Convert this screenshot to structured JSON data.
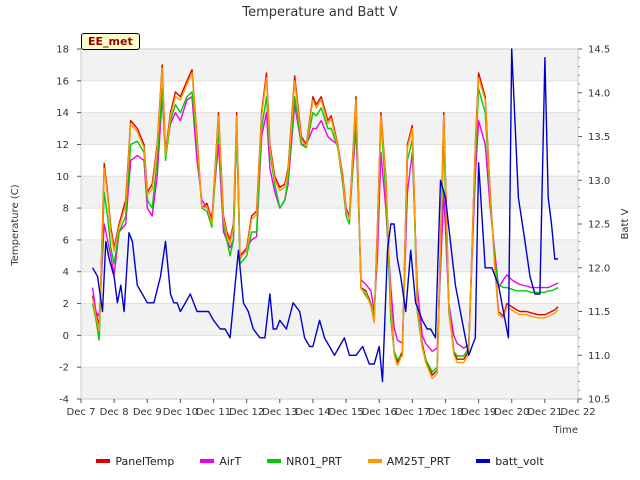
{
  "chart_data": {
    "type": "line",
    "title": "Temperature and Batt V",
    "site_label": "EE_met",
    "xlabel": "Time",
    "ylabel": "Temperature (C)",
    "y2label": "Batt V",
    "xlim": [
      7,
      22
    ],
    "ylim": [
      -4,
      18
    ],
    "y2lim": [
      10.5,
      14.5
    ],
    "x_ticks": [
      7,
      8,
      9,
      10,
      11,
      12,
      13,
      14,
      15,
      16,
      17,
      18,
      19,
      20,
      21,
      22
    ],
    "x_tick_labels": [
      "Dec 7",
      "Dec 8",
      "Dec 9",
      "Dec 10",
      "Dec 11",
      "Dec 12",
      "Dec 13",
      "Dec 14",
      "Dec 15",
      "Dec 16",
      "Dec 17",
      "Dec 18",
      "Dec 19",
      "Dec 20",
      "Dec 21",
      "Dec 22"
    ],
    "y_ticks": [
      -4,
      -2,
      0,
      2,
      4,
      6,
      8,
      10,
      12,
      14,
      16,
      18
    ],
    "y2_ticks": [
      10.5,
      11.0,
      11.5,
      12.0,
      12.5,
      13.0,
      13.5,
      14.0,
      14.5
    ],
    "y2_tick_labels": [
      "10.5",
      "11.0",
      "11.5",
      "12.0",
      "12.5",
      "13.0",
      "13.5",
      "14.0",
      "14.5"
    ],
    "grid": "horizontal bands",
    "legend_position": "bottom",
    "series": [
      {
        "name": "PanelTemp",
        "color": "#dd0000",
        "axis": "left",
        "x": [
          7.35,
          7.45,
          7.55,
          7.6,
          7.7,
          7.8,
          7.9,
          8.0,
          8.15,
          8.35,
          8.5,
          8.7,
          8.9,
          9.0,
          9.15,
          9.3,
          9.45,
          9.55,
          9.7,
          9.85,
          10.0,
          10.2,
          10.35,
          10.5,
          10.65,
          10.8,
          10.95,
          11.15,
          11.3,
          11.4,
          11.5,
          11.6,
          11.7,
          11.8,
          12.0,
          12.15,
          12.3,
          12.45,
          12.6,
          12.7,
          12.85,
          13.0,
          13.15,
          13.25,
          13.45,
          13.65,
          13.8,
          14.0,
          14.1,
          14.25,
          14.45,
          14.55,
          14.75,
          14.9,
          15.0,
          15.1,
          15.3,
          15.45,
          15.6,
          15.75,
          15.85,
          15.95,
          16.05,
          16.2,
          16.35,
          16.45,
          16.55,
          16.7,
          16.85,
          17.0,
          17.15,
          17.3,
          17.4,
          17.6,
          17.75,
          17.95,
          18.1,
          18.25,
          18.35,
          18.55,
          18.7,
          18.9,
          19.0,
          19.2,
          19.35,
          19.5,
          19.6,
          19.75,
          19.85,
          20.0,
          20.15,
          20.25,
          20.45,
          20.6,
          20.8,
          20.95,
          21.0,
          21.1,
          21.2,
          21.3,
          21.4
        ],
        "y": [
          2.5,
          1.5,
          0.5,
          3.5,
          10.8,
          9.0,
          6.8,
          5.5,
          7.0,
          8.5,
          13.5,
          13.0,
          12.0,
          9.0,
          9.5,
          12.0,
          17.0,
          11.5,
          14.0,
          15.3,
          15.0,
          16.0,
          16.7,
          12.5,
          8.0,
          8.3,
          7.2,
          14.0,
          7.5,
          6.5,
          6.0,
          7.0,
          14.0,
          5.0,
          5.5,
          7.5,
          7.8,
          14.0,
          16.5,
          12.0,
          10.0,
          9.3,
          9.5,
          10.5,
          16.3,
          12.5,
          12.0,
          15.0,
          14.5,
          15.0,
          13.5,
          13.8,
          12.0,
          10.0,
          8.0,
          7.5,
          15.0,
          3.0,
          2.8,
          2.0,
          1.0,
          7.0,
          14.0,
          10.0,
          2.0,
          -1.0,
          -1.7,
          -1.0,
          12.0,
          13.2,
          2.0,
          -0.5,
          -1.5,
          -2.5,
          -2.2,
          14.0,
          2.0,
          -1.0,
          -1.5,
          -1.5,
          -1.0,
          12.0,
          16.5,
          15.0,
          9.0,
          4.0,
          1.5,
          1.2,
          2.0,
          1.8,
          1.6,
          1.5,
          1.5,
          1.4,
          1.3,
          1.3,
          1.3,
          1.4,
          1.5,
          1.6,
          1.8
        ]
      },
      {
        "name": "AirT",
        "color": "#ee00ee",
        "axis": "left",
        "x": [
          7.35,
          7.45,
          7.55,
          7.6,
          7.7,
          7.8,
          7.9,
          8.0,
          8.15,
          8.35,
          8.5,
          8.7,
          8.9,
          9.0,
          9.15,
          9.3,
          9.45,
          9.55,
          9.7,
          9.85,
          10.0,
          10.2,
          10.35,
          10.5,
          10.65,
          10.8,
          10.95,
          11.15,
          11.3,
          11.4,
          11.5,
          11.6,
          11.7,
          11.8,
          12.0,
          12.15,
          12.3,
          12.45,
          12.6,
          12.7,
          12.85,
          13.0,
          13.15,
          13.25,
          13.45,
          13.65,
          13.8,
          14.0,
          14.1,
          14.25,
          14.45,
          14.55,
          14.75,
          14.9,
          15.0,
          15.1,
          15.3,
          15.45,
          15.6,
          15.75,
          15.85,
          15.95,
          16.05,
          16.2,
          16.35,
          16.45,
          16.55,
          16.7,
          16.85,
          17.0,
          17.15,
          17.3,
          17.4,
          17.6,
          17.75,
          17.95,
          18.1,
          18.25,
          18.35,
          18.55,
          18.7,
          18.9,
          19.0,
          19.2,
          19.35,
          19.5,
          19.6,
          19.75,
          19.85,
          20.0,
          20.15,
          20.25,
          20.45,
          20.6,
          20.8,
          20.95,
          21.0,
          21.1,
          21.2,
          21.3,
          21.4
        ],
        "y": [
          3.0,
          1.5,
          1.2,
          3.0,
          7.0,
          6.0,
          5.0,
          3.8,
          6.5,
          7.0,
          11.0,
          11.3,
          11.0,
          8.0,
          7.5,
          10.0,
          15.0,
          11.5,
          13.3,
          14.0,
          13.5,
          14.8,
          15.0,
          11.0,
          8.5,
          8.0,
          7.5,
          12.0,
          6.5,
          6.0,
          5.5,
          6.0,
          13.0,
          4.8,
          5.5,
          6.0,
          6.2,
          12.5,
          14.0,
          10.5,
          9.0,
          8.0,
          8.5,
          9.5,
          14.5,
          12.0,
          12.0,
          13.0,
          13.0,
          13.5,
          12.5,
          12.3,
          12.0,
          9.5,
          8.0,
          7.5,
          13.0,
          3.5,
          3.2,
          2.8,
          1.5,
          5.0,
          11.5,
          8.0,
          3.0,
          0.5,
          -0.3,
          -0.5,
          9.0,
          11.5,
          3.0,
          0.0,
          -0.5,
          -1.0,
          -0.8,
          9.0,
          2.0,
          0.0,
          -0.5,
          -0.8,
          -0.6,
          10.0,
          13.5,
          12.0,
          8.0,
          5.0,
          3.0,
          3.5,
          3.8,
          3.5,
          3.3,
          3.2,
          3.1,
          3.0,
          3.0,
          3.0,
          3.0,
          3.0,
          3.1,
          3.2,
          3.3
        ]
      },
      {
        "name": "NR01_PRT",
        "color": "#00cc00",
        "axis": "left",
        "x": [
          7.35,
          7.45,
          7.55,
          7.6,
          7.7,
          7.8,
          7.9,
          8.0,
          8.15,
          8.35,
          8.5,
          8.7,
          8.9,
          9.0,
          9.15,
          9.3,
          9.45,
          9.55,
          9.7,
          9.85,
          10.0,
          10.2,
          10.35,
          10.5,
          10.65,
          10.8,
          10.95,
          11.15,
          11.3,
          11.4,
          11.5,
          11.6,
          11.7,
          11.8,
          12.0,
          12.15,
          12.3,
          12.45,
          12.6,
          12.7,
          12.85,
          13.0,
          13.15,
          13.25,
          13.45,
          13.65,
          13.8,
          14.0,
          14.1,
          14.25,
          14.45,
          14.55,
          14.75,
          14.9,
          15.0,
          15.1,
          15.3,
          15.45,
          15.6,
          15.75,
          15.85,
          15.95,
          16.05,
          16.2,
          16.35,
          16.45,
          16.55,
          16.7,
          16.85,
          17.0,
          17.15,
          17.3,
          17.4,
          17.6,
          17.75,
          17.95,
          18.1,
          18.25,
          18.35,
          18.55,
          18.7,
          18.9,
          19.0,
          19.2,
          19.35,
          19.5,
          19.6,
          19.75,
          19.85,
          20.0,
          20.15,
          20.25,
          20.45,
          20.6,
          20.8,
          20.95,
          21.0,
          21.1,
          21.2,
          21.3,
          21.4
        ],
        "y": [
          2.0,
          1.0,
          -0.3,
          3.0,
          9.0,
          7.5,
          5.5,
          4.5,
          6.5,
          7.5,
          12.0,
          12.2,
          11.5,
          8.5,
          8.0,
          11.0,
          15.5,
          11.0,
          13.5,
          14.5,
          14.0,
          15.0,
          15.3,
          12.0,
          8.0,
          7.8,
          6.8,
          13.0,
          7.0,
          6.0,
          5.0,
          6.0,
          13.0,
          4.5,
          5.0,
          6.5,
          6.5,
          13.0,
          15.0,
          11.5,
          9.5,
          8.0,
          8.5,
          9.8,
          15.0,
          12.0,
          11.8,
          14.0,
          13.8,
          14.3,
          13.0,
          13.0,
          11.8,
          9.5,
          7.5,
          7.0,
          14.0,
          3.0,
          2.5,
          2.0,
          1.0,
          6.5,
          13.5,
          9.0,
          1.0,
          -1.0,
          -1.5,
          -1.3,
          11.0,
          12.3,
          1.5,
          -0.8,
          -1.5,
          -2.3,
          -2.0,
          12.5,
          1.5,
          -1.0,
          -1.3,
          -1.3,
          -0.8,
          11.0,
          15.5,
          14.0,
          8.5,
          4.5,
          3.2,
          3.0,
          3.0,
          2.9,
          2.8,
          2.8,
          2.8,
          2.7,
          2.7,
          2.7,
          2.7,
          2.8,
          2.8,
          2.9,
          3.0
        ]
      },
      {
        "name": "AM25T_PRT",
        "color": "#ff9900",
        "axis": "left",
        "x": [
          7.35,
          7.45,
          7.55,
          7.6,
          7.7,
          7.8,
          7.9,
          8.0,
          8.15,
          8.35,
          8.5,
          8.7,
          8.9,
          9.0,
          9.15,
          9.3,
          9.45,
          9.55,
          9.7,
          9.85,
          10.0,
          10.2,
          10.35,
          10.5,
          10.65,
          10.8,
          10.95,
          11.15,
          11.3,
          11.4,
          11.5,
          11.6,
          11.7,
          11.8,
          12.0,
          12.15,
          12.3,
          12.45,
          12.6,
          12.7,
          12.85,
          13.0,
          13.15,
          13.25,
          13.45,
          13.65,
          13.8,
          14.0,
          14.1,
          14.25,
          14.45,
          14.55,
          14.75,
          14.9,
          15.0,
          15.1,
          15.3,
          15.45,
          15.6,
          15.75,
          15.85,
          15.95,
          16.05,
          16.2,
          16.35,
          16.45,
          16.55,
          16.7,
          16.85,
          17.0,
          17.15,
          17.3,
          17.4,
          17.6,
          17.75,
          17.95,
          18.1,
          18.25,
          18.35,
          18.55,
          18.7,
          18.9,
          19.0,
          19.2,
          19.35,
          19.5,
          19.6,
          19.75,
          19.85,
          20.0,
          20.15,
          20.25,
          20.45,
          20.6,
          20.8,
          20.95,
          21.0,
          21.1,
          21.2,
          21.3,
          21.4
        ],
        "y": [
          2.3,
          1.2,
          0.3,
          3.3,
          10.5,
          8.8,
          6.5,
          5.3,
          6.8,
          8.2,
          13.3,
          12.8,
          11.8,
          8.8,
          9.2,
          11.8,
          16.8,
          11.3,
          13.8,
          15.0,
          14.8,
          15.8,
          16.5,
          12.3,
          8.0,
          8.1,
          7.0,
          13.8,
          7.3,
          6.3,
          5.8,
          6.8,
          13.8,
          4.9,
          5.3,
          7.3,
          7.6,
          13.8,
          16.2,
          11.8,
          9.8,
          9.1,
          9.3,
          10.3,
          16.0,
          12.3,
          11.9,
          14.8,
          14.3,
          14.8,
          13.3,
          13.6,
          11.9,
          9.8,
          7.8,
          7.3,
          14.8,
          2.9,
          2.7,
          1.8,
          0.8,
          6.8,
          13.8,
          9.8,
          1.8,
          -1.2,
          -1.9,
          -1.2,
          11.8,
          13.0,
          1.8,
          -0.7,
          -1.7,
          -2.7,
          -2.4,
          13.8,
          1.8,
          -1.2,
          -1.7,
          -1.7,
          -1.2,
          11.8,
          16.2,
          14.8,
          8.8,
          3.8,
          1.3,
          1.1,
          1.8,
          1.6,
          1.4,
          1.3,
          1.3,
          1.2,
          1.1,
          1.1,
          1.1,
          1.2,
          1.3,
          1.4,
          1.6
        ]
      },
      {
        "name": "batt_volt",
        "color": "#0000cc",
        "axis": "right",
        "x": [
          7.35,
          7.5,
          7.65,
          7.75,
          7.85,
          8.0,
          8.1,
          8.2,
          8.3,
          8.45,
          8.55,
          8.7,
          8.85,
          9.0,
          9.2,
          9.4,
          9.55,
          9.7,
          9.8,
          9.9,
          10.0,
          10.15,
          10.3,
          10.5,
          10.7,
          10.85,
          11.0,
          11.2,
          11.35,
          11.5,
          11.65,
          11.75,
          11.9,
          12.05,
          12.2,
          12.4,
          12.55,
          12.7,
          12.8,
          12.9,
          13.0,
          13.2,
          13.4,
          13.6,
          13.75,
          13.9,
          14.0,
          14.2,
          14.35,
          14.5,
          14.65,
          14.8,
          14.95,
          15.1,
          15.3,
          15.5,
          15.7,
          15.85,
          16.0,
          16.1,
          16.25,
          16.35,
          16.45,
          16.55,
          16.65,
          16.8,
          16.95,
          17.1,
          17.3,
          17.45,
          17.55,
          17.7,
          17.85,
          18.0,
          18.15,
          18.3,
          18.5,
          18.7,
          18.9,
          19.0,
          19.2,
          19.4,
          19.5,
          19.6,
          19.75,
          19.9,
          20.0,
          20.2,
          20.4,
          20.55,
          20.7,
          20.85,
          21.0,
          21.1,
          21.2,
          21.3,
          21.4
        ],
        "y": [
          12.0,
          11.9,
          11.5,
          12.3,
          12.1,
          11.9,
          11.6,
          11.8,
          11.5,
          12.4,
          12.3,
          11.8,
          11.7,
          11.6,
          11.6,
          11.9,
          12.3,
          11.7,
          11.6,
          11.6,
          11.5,
          11.6,
          11.7,
          11.5,
          11.5,
          11.5,
          11.4,
          11.3,
          11.3,
          11.2,
          11.8,
          12.2,
          11.6,
          11.5,
          11.3,
          11.2,
          11.2,
          11.7,
          11.3,
          11.3,
          11.4,
          11.3,
          11.6,
          11.5,
          11.2,
          11.1,
          11.1,
          11.4,
          11.2,
          11.1,
          11.0,
          11.1,
          11.2,
          11.0,
          11.0,
          11.1,
          10.9,
          10.9,
          11.1,
          10.7,
          12.2,
          12.5,
          12.5,
          12.1,
          11.9,
          11.5,
          12.2,
          11.6,
          11.4,
          11.3,
          11.3,
          11.2,
          13.0,
          12.8,
          12.3,
          11.8,
          11.4,
          11.0,
          11.2,
          13.2,
          12.0,
          12.0,
          11.9,
          11.8,
          11.5,
          11.2,
          14.5,
          12.8,
          12.3,
          11.9,
          11.7,
          11.7,
          14.4,
          12.8,
          12.5,
          12.1,
          12.1
        ]
      }
    ]
  }
}
